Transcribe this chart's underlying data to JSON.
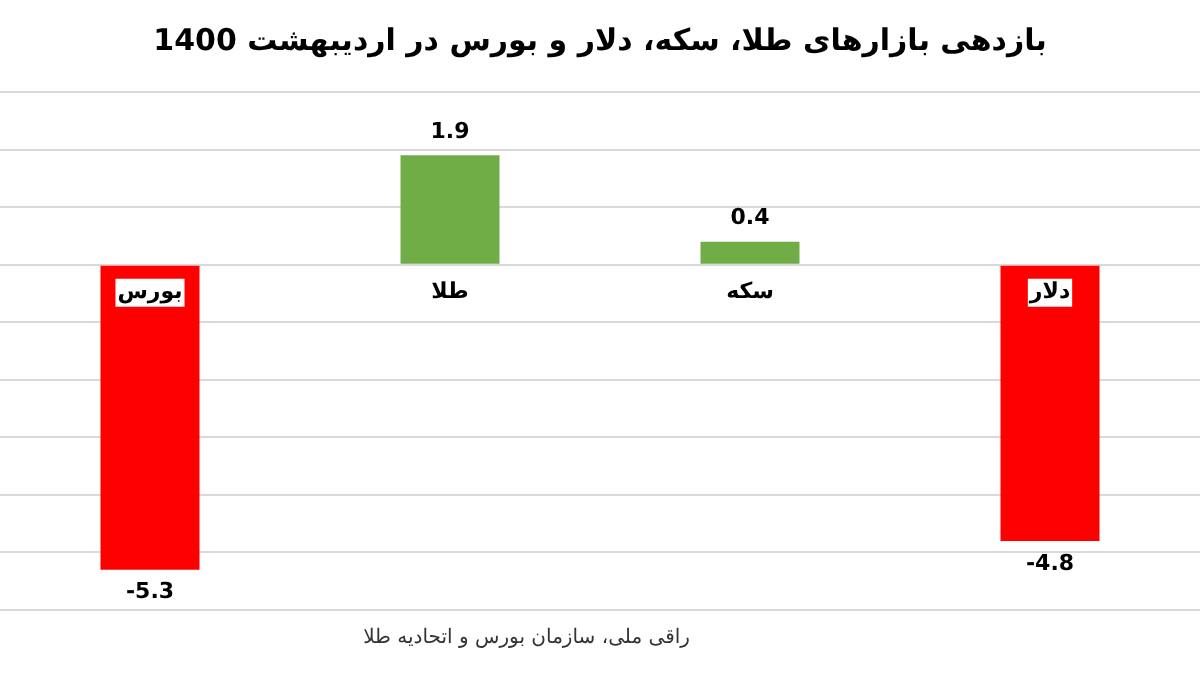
{
  "chart_data": {
    "type": "bar",
    "title": "بازدهی بازارهای طلا، سکه، دلار و بورس در اردیبهشت 1400",
    "categories": [
      "بورس",
      "طلا",
      "سکه",
      "دلار"
    ],
    "values": [
      -5.3,
      1.9,
      0.4,
      -4.8
    ],
    "colors": [
      "#ff0000",
      "#70ad47",
      "#70ad47",
      "#ff0000"
    ],
    "ylim": [
      -6,
      3
    ],
    "yticks": [
      {
        "value": -6,
        "label": null
      },
      {
        "value": -5,
        "label": null
      },
      {
        "value": -4,
        "label": null
      },
      {
        "value": -3,
        "label": null
      },
      {
        "value": -2,
        "label": null
      },
      {
        "value": -1,
        "label": null
      },
      {
        "value": 0,
        "label": null
      },
      {
        "value": 1,
        "label": null
      },
      {
        "value": 2,
        "label": null
      },
      {
        "value": 3,
        "label": null
      }
    ],
    "grid": "y",
    "tick_labels": "x",
    "data_labels": true,
    "legend": false,
    "annotations": [
      "راقی ملی، سازمان بورس و اتحادیه طلا"
    ]
  }
}
